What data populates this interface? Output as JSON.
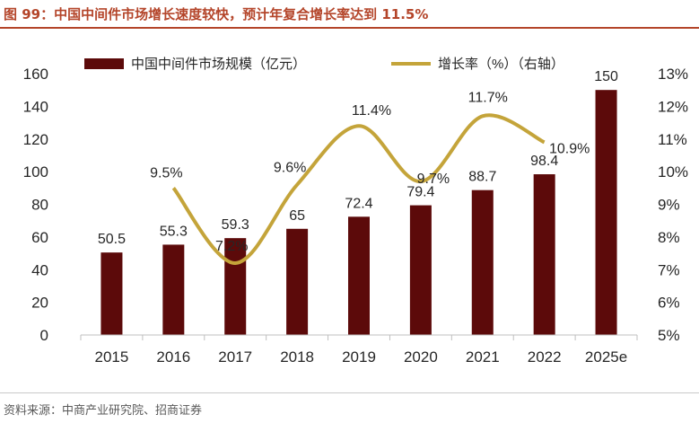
{
  "header": {
    "title": "图 99：中国中间件市场增长速度较快，预计年复合增长率达到 11.5%"
  },
  "footer": {
    "source": "资料来源：中商产业研究院、招商证券"
  },
  "colors": {
    "bar": "#5c0a0a",
    "line": "#c4a43a",
    "title": "#b4452a",
    "axis_text": "#262626"
  },
  "chart_data": {
    "type": "bar",
    "categories": [
      "2015",
      "2016",
      "2017",
      "2018",
      "2019",
      "2020",
      "2021",
      "2022",
      "2025e"
    ],
    "series": [
      {
        "name": "中国中间件市场规模（亿元）",
        "type": "bar",
        "axis": "left",
        "values": [
          50.5,
          55.3,
          59.3,
          65,
          72.4,
          79.4,
          88.7,
          98.4,
          150
        ],
        "labels": [
          "50.5",
          "55.3",
          "59.3",
          "65",
          "72.4",
          "79.4",
          "88.7",
          "98.4",
          "150"
        ]
      },
      {
        "name": "增长率（%）（右轴）",
        "type": "line",
        "axis": "right",
        "values": [
          null,
          9.5,
          7.2,
          9.6,
          11.4,
          9.7,
          11.7,
          10.9,
          null
        ],
        "labels": [
          "",
          "9.5%",
          "7.2%",
          "9.6%",
          "11.4%",
          "9.7%",
          "11.7%",
          "10.9%",
          ""
        ]
      }
    ],
    "y_left": {
      "lim": [
        0,
        160
      ],
      "ticks": [
        0,
        20,
        40,
        60,
        80,
        100,
        120,
        140,
        160
      ],
      "tick_labels": [
        "0",
        "20",
        "40",
        "60",
        "80",
        "100",
        "120",
        "140",
        "160"
      ]
    },
    "y_right": {
      "lim": [
        5,
        13
      ],
      "ticks": [
        5,
        6,
        7,
        8,
        9,
        10,
        11,
        12,
        13
      ],
      "tick_labels": [
        "5%",
        "6%",
        "7%",
        "8%",
        "9%",
        "10%",
        "11%",
        "12%",
        "13%"
      ]
    },
    "legend_position": "top",
    "grid": false
  }
}
